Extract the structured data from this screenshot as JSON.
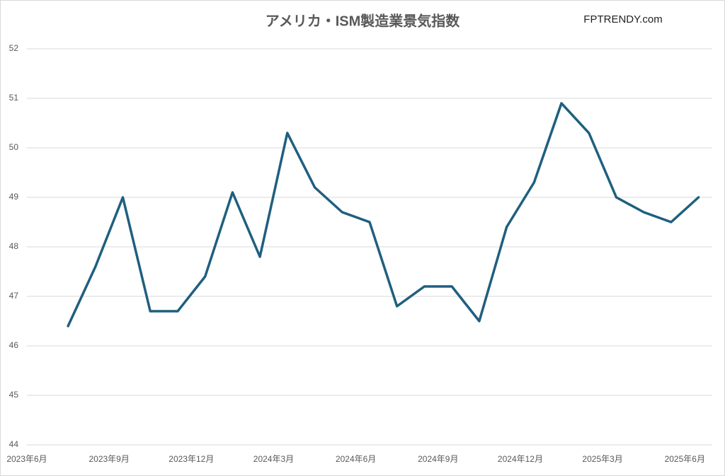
{
  "chart_data": {
    "type": "line",
    "title": "アメリカ・ISM製造業景気指数",
    "annotation": "FPTRENDY.com",
    "categories": [
      "2023年6月",
      null,
      null,
      "2023年9月",
      null,
      null,
      "2023年12月",
      null,
      null,
      "2024年3月",
      null,
      null,
      "2024年6月",
      null,
      null,
      "2024年9月",
      null,
      null,
      "2024年12月",
      null,
      null,
      "2025年3月",
      null,
      null,
      "2025年6月"
    ],
    "series": [
      {
        "name": "ISM製造業景気指数",
        "color": "#1f5f7f",
        "values": [
          null,
          46.4,
          47.6,
          49.0,
          46.7,
          46.7,
          47.4,
          49.1,
          47.8,
          50.3,
          49.2,
          48.7,
          48.5,
          46.8,
          47.2,
          47.2,
          46.5,
          48.4,
          49.3,
          50.9,
          50.3,
          49.0,
          48.7,
          48.5,
          49.0
        ]
      }
    ],
    "ylim": [
      44,
      52
    ],
    "yticks": [
      44,
      45,
      46,
      47,
      48,
      49,
      50,
      51,
      52
    ],
    "grid": true
  }
}
